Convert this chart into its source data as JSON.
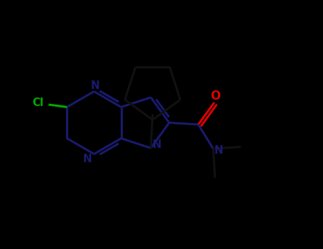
{
  "background_color": "#000000",
  "bond_color_dark": "#1a1a6e",
  "bond_color_black": "#111111",
  "cl_color": "#00aa00",
  "o_color": "#dd0000",
  "n_color": "#1a1a6e",
  "bond_lw": 2.2,
  "figsize": [
    4.55,
    3.5
  ],
  "dpi": 100,
  "xlim": [
    0,
    9.1
  ],
  "ylim": [
    0,
    7.0
  ]
}
